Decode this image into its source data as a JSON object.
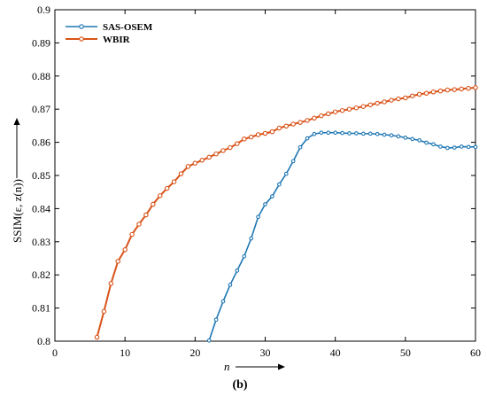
{
  "chart_data": {
    "type": "line",
    "xlabel": "n",
    "ylabel": "SSIM(ε, z(n))",
    "xlim": [
      0,
      60
    ],
    "ylim": [
      0.8,
      0.9
    ],
    "xticks": [
      0,
      10,
      20,
      30,
      40,
      50,
      60
    ],
    "yticks": [
      0.8,
      0.81,
      0.82,
      0.83,
      0.84,
      0.85,
      0.86,
      0.87,
      0.88,
      0.89,
      0.9
    ],
    "x_tick_labels": [
      "0",
      "10",
      "20",
      "30",
      "40",
      "50",
      "60"
    ],
    "y_tick_labels": [
      "0.8",
      "0.81",
      "0.82",
      "0.83",
      "0.84",
      "0.85",
      "0.86",
      "0.87",
      "0.88",
      "0.89",
      "0.9"
    ],
    "grid": false,
    "legend_position": "top-left",
    "caption": "(b)",
    "series": [
      {
        "name": "SAS-OSEM",
        "color": "#1f77b4",
        "marker": "circle",
        "x": [
          22,
          23,
          24,
          25,
          26,
          27,
          28,
          29,
          30,
          31,
          32,
          33,
          34,
          35,
          36,
          37,
          38,
          39,
          40,
          41,
          42,
          43,
          44,
          45,
          46,
          47,
          48,
          49,
          50,
          51,
          52,
          53,
          54,
          55,
          56,
          57,
          58,
          59,
          60
        ],
        "y": [
          0.8002,
          0.8065,
          0.812,
          0.817,
          0.8213,
          0.8256,
          0.831,
          0.8375,
          0.8413,
          0.8437,
          0.8473,
          0.8505,
          0.8543,
          0.8585,
          0.8612,
          0.8625,
          0.8629,
          0.8629,
          0.8629,
          0.8628,
          0.8627,
          0.8627,
          0.8626,
          0.8626,
          0.8625,
          0.8623,
          0.8621,
          0.8618,
          0.8614,
          0.861,
          0.8606,
          0.8599,
          0.8594,
          0.8587,
          0.8583,
          0.8584,
          0.8587,
          0.8586,
          0.8586
        ]
      },
      {
        "name": "WBIR",
        "color": "#d95319",
        "marker": "circle",
        "x": [
          6,
          7,
          8,
          9,
          10,
          11,
          12,
          13,
          14,
          15,
          16,
          17,
          18,
          19,
          20,
          21,
          22,
          23,
          24,
          25,
          26,
          27,
          28,
          29,
          30,
          31,
          32,
          33,
          34,
          35,
          36,
          37,
          38,
          39,
          40,
          41,
          42,
          43,
          44,
          45,
          46,
          47,
          48,
          49,
          50,
          51,
          52,
          53,
          54,
          55,
          56,
          57,
          58,
          59,
          60
        ],
        "y": [
          0.8012,
          0.809,
          0.8174,
          0.8241,
          0.8276,
          0.8322,
          0.8353,
          0.8381,
          0.8413,
          0.8439,
          0.8461,
          0.8481,
          0.8505,
          0.8527,
          0.8537,
          0.8546,
          0.8555,
          0.8565,
          0.8575,
          0.8584,
          0.8596,
          0.861,
          0.8616,
          0.8623,
          0.8627,
          0.8632,
          0.8643,
          0.8649,
          0.8655,
          0.866,
          0.8666,
          0.8673,
          0.868,
          0.8686,
          0.8692,
          0.8696,
          0.87,
          0.8704,
          0.8708,
          0.8713,
          0.8718,
          0.8722,
          0.8727,
          0.8731,
          0.8734,
          0.874,
          0.8745,
          0.8748,
          0.8752,
          0.8755,
          0.8758,
          0.8759,
          0.8761,
          0.8763,
          0.8765
        ]
      }
    ]
  }
}
